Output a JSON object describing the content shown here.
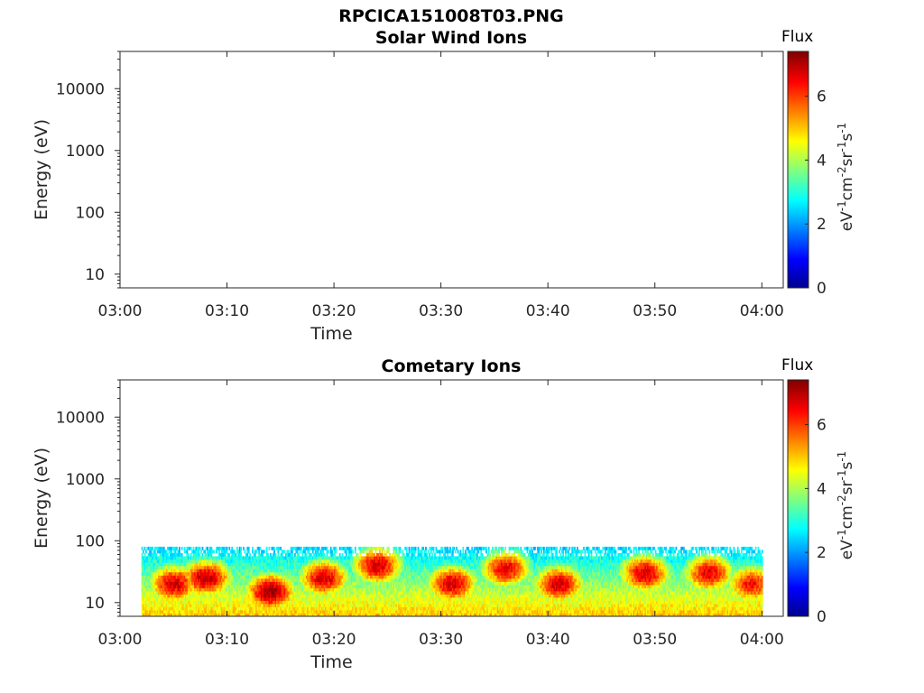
{
  "figure": {
    "title": "RPCICA151008T03.PNG"
  },
  "chart_data": [
    {
      "type": "heatmap",
      "title": "Solar Wind Ions",
      "xlabel": "Time",
      "ylabel": "Energy (eV)",
      "x_ticks": [
        "03:00",
        "03:10",
        "03:20",
        "03:30",
        "03:40",
        "03:50",
        "04:00"
      ],
      "xlim": [
        "03:00",
        "04:02"
      ],
      "y_scale": "log",
      "y_ticks": [
        "10",
        "100",
        "1000",
        "10000"
      ],
      "ylim": [
        6,
        40000
      ],
      "colorbar": {
        "title": "Flux",
        "label": "eV-1cm-2sr-1s-1",
        "ticks": [
          "0",
          "2",
          "4",
          "6"
        ],
        "range": [
          0,
          7.4
        ],
        "colormap": "jet"
      },
      "data": []
    },
    {
      "type": "heatmap",
      "title": "Cometary Ions",
      "xlabel": "Time",
      "ylabel": "Energy (eV)",
      "x_ticks": [
        "03:00",
        "03:10",
        "03:20",
        "03:30",
        "03:40",
        "03:50",
        "04:00"
      ],
      "xlim": [
        "03:00",
        "04:02"
      ],
      "y_scale": "log",
      "y_ticks": [
        "10",
        "100",
        "1000",
        "10000"
      ],
      "ylim": [
        6,
        40000
      ],
      "colorbar": {
        "title": "Flux",
        "label": "eV-1cm-2sr-1s-1",
        "ticks": [
          "0",
          "2",
          "4",
          "6"
        ],
        "range": [
          0,
          7.4
        ],
        "colormap": "jet"
      },
      "energy_range_eV": [
        6,
        80
      ],
      "time_range": [
        "03:02",
        "04:00"
      ],
      "intensity_peaks": [
        {
          "time": "03:05",
          "energy_eV": 20,
          "flux": 6.8
        },
        {
          "time": "03:08",
          "energy_eV": 25,
          "flux": 7.0
        },
        {
          "time": "03:14",
          "energy_eV": 15,
          "flux": 7.2
        },
        {
          "time": "03:19",
          "energy_eV": 25,
          "flux": 6.8
        },
        {
          "time": "03:24",
          "energy_eV": 40,
          "flux": 6.8
        },
        {
          "time": "03:31",
          "energy_eV": 20,
          "flux": 6.8
        },
        {
          "time": "03:36",
          "energy_eV": 35,
          "flux": 6.6
        },
        {
          "time": "03:41",
          "energy_eV": 20,
          "flux": 6.8
        },
        {
          "time": "03:49",
          "energy_eV": 30,
          "flux": 6.8
        },
        {
          "time": "03:55",
          "energy_eV": 30,
          "flux": 6.6
        },
        {
          "time": "03:59",
          "energy_eV": 20,
          "flux": 6.4
        }
      ]
    }
  ]
}
